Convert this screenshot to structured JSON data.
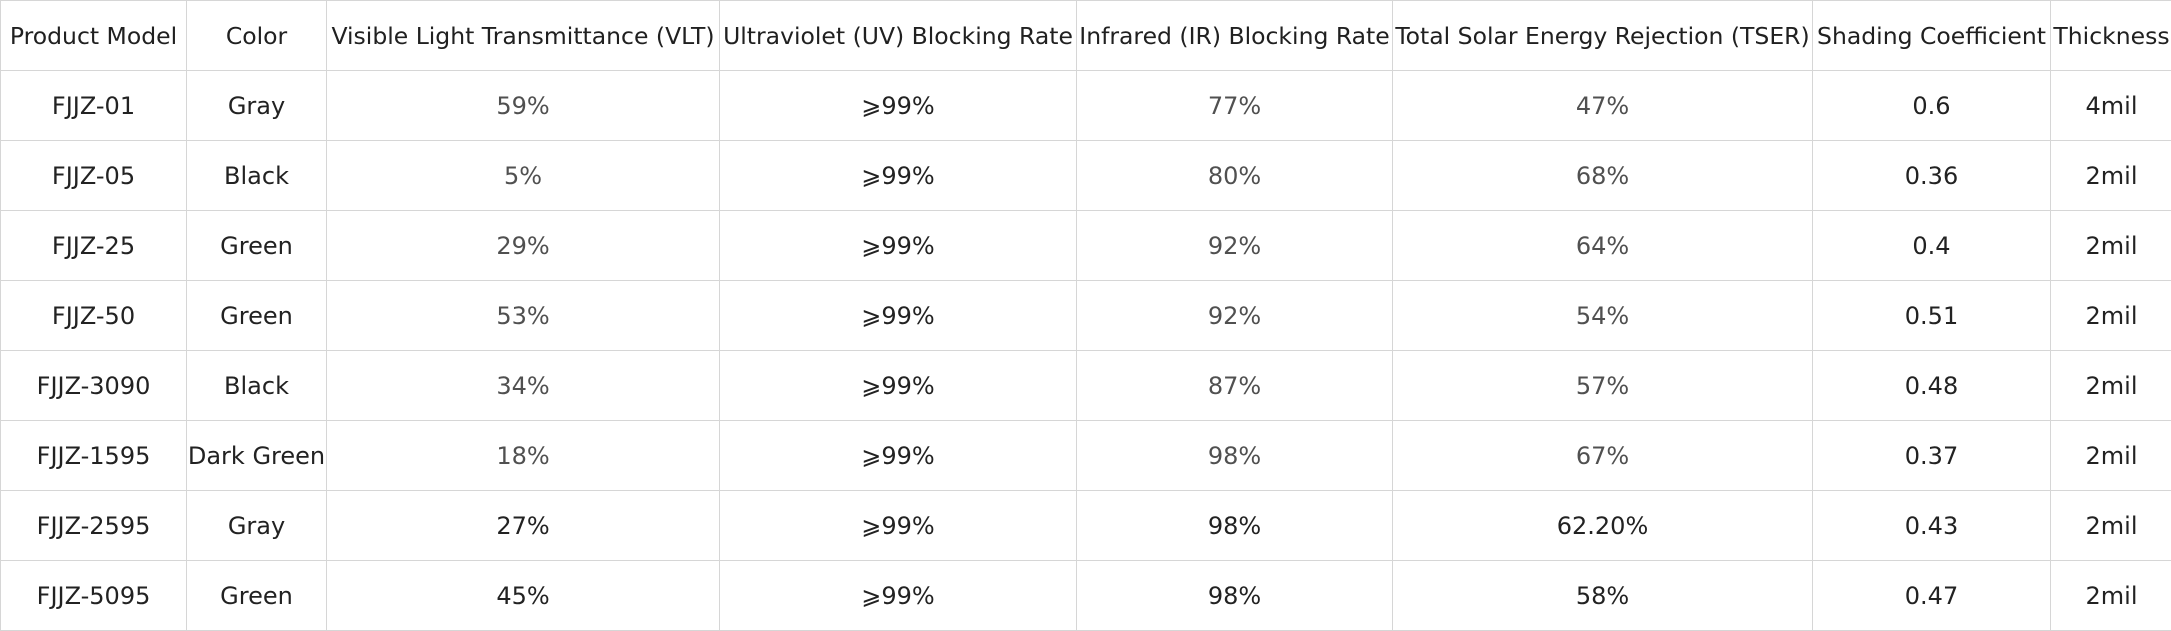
{
  "table": {
    "headers": [
      "Product Model",
      "Color",
      "Visible Light Transmittance (VLT)",
      "Ultraviolet (UV) Blocking Rate",
      "Infrared (IR) Blocking Rate",
      "Total Solar Energy Rejection (TSER)",
      "Shading Coefficient",
      "Thickness"
    ],
    "rows": [
      [
        "FJJZ-01",
        "Gray",
        "59%",
        "⩾99%",
        "77%",
        "47%",
        "0.6",
        "4mil"
      ],
      [
        "FJJZ-05",
        "Black",
        "5%",
        "⩾99%",
        "80%",
        "68%",
        "0.36",
        "2mil"
      ],
      [
        "FJJZ-25",
        "Green",
        "29%",
        "⩾99%",
        "92%",
        "64%",
        "0.4",
        "2mil"
      ],
      [
        "FJJZ-50",
        "Green",
        "53%",
        "⩾99%",
        "92%",
        "54%",
        "0.51",
        "2mil"
      ],
      [
        "FJJZ-3090",
        "Black",
        "34%",
        "⩾99%",
        "87%",
        "57%",
        "0.48",
        "2mil"
      ],
      [
        "FJJZ-1595",
        "Dark Green",
        "18%",
        "⩾99%",
        "98%",
        "67%",
        "0.37",
        "2mil"
      ],
      [
        "FJJZ-2595",
        "Gray",
        "27%",
        "⩾99%",
        "98%",
        "62.20%",
        "0.43",
        "2mil"
      ],
      [
        "FJJZ-5095",
        "Green",
        "45%",
        "⩾99%",
        "98%",
        "58%",
        "0.47",
        "2mil"
      ]
    ]
  }
}
